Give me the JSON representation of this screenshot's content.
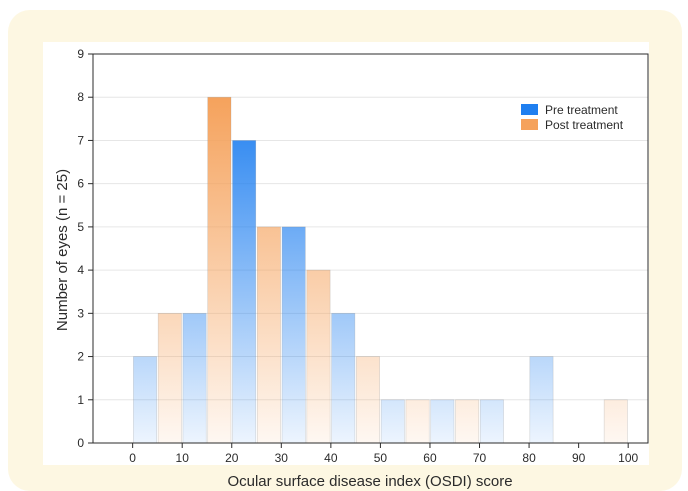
{
  "colors": {
    "panel_background": "#fdf7e2",
    "pre_treatment": "#1f7ff0",
    "post_treatment": "#f5a25c"
  },
  "chart_data": {
    "type": "bar",
    "xlabel": "Ocular surface disease index (OSDI) score",
    "ylabel": "Number of eyes (n = 25)",
    "xlim": [
      -8,
      104
    ],
    "ylim": [
      0,
      9
    ],
    "xticks": [
      0,
      10,
      20,
      30,
      40,
      50,
      60,
      70,
      80,
      90,
      100
    ],
    "yticks": [
      0,
      1,
      2,
      3,
      4,
      5,
      6,
      7,
      8,
      9
    ],
    "bin_width": 10,
    "bin_starts": [
      0,
      10,
      20,
      30,
      40,
      50,
      60,
      70,
      80,
      90
    ],
    "grid": true,
    "legend_position": "top-right",
    "series": [
      {
        "name": "Pre treatment",
        "color": "#1f7ff0",
        "values": [
          2,
          3,
          7,
          5,
          3,
          1,
          1,
          1,
          2,
          0
        ]
      },
      {
        "name": "Post treatment",
        "color": "#f5a25c",
        "values": [
          3,
          8,
          5,
          4,
          2,
          1,
          1,
          0,
          0,
          1
        ]
      }
    ]
  }
}
